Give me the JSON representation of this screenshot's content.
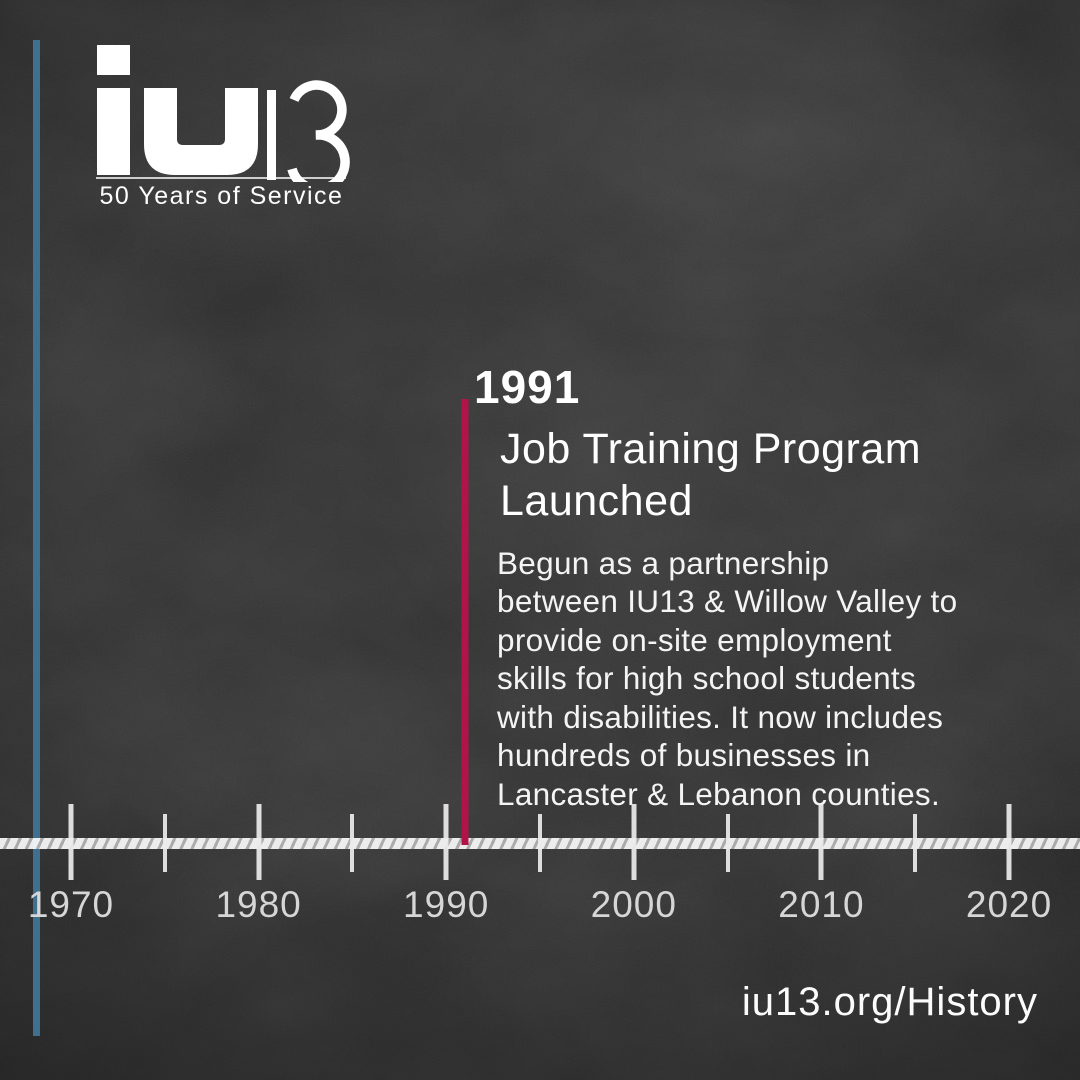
{
  "logo": {
    "name": "iu13",
    "tagline": "50 Years of Service"
  },
  "event": {
    "year": "1991",
    "title": "Job Training Program\nLaunched",
    "description": "Begun as a partnership\nbetween IU13 & Willow Valley to\nprovide on-site employment\nskills for high school students\nwith disabilities. It now includes\nhundreds of businesses in\nLancaster & Lebanon counties."
  },
  "timeline": {
    "start_year": 1970,
    "end_year": 2020,
    "major_tick_step": 10,
    "minor_tick_step": 5,
    "decade_labels": [
      "1970",
      "1980",
      "1990",
      "2000",
      "2010",
      "2020"
    ],
    "highlighted_year": 1991
  },
  "footer": {
    "url_text": "iu13.org/History"
  },
  "colors": {
    "background": "#232323",
    "accent_red": "#b2134a",
    "accent_blue": "#3f7090",
    "timeline_band": "#dcdcdc",
    "tick_label": "#d6d6d6"
  }
}
